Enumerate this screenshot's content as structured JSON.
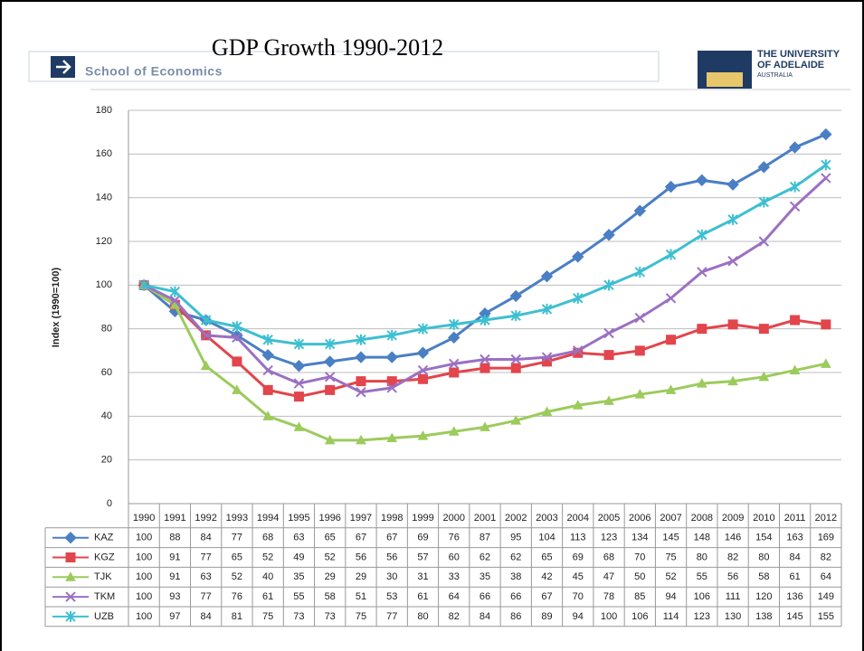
{
  "header": {
    "school": "School of Economics",
    "logo": [
      "THE UNIVERSITY",
      "OF ADELAIDE",
      "AUSTRALIA"
    ]
  },
  "chart_data": {
    "type": "line",
    "title": "GDP Growth 1990-2012",
    "y_label": "Index (1990=100)",
    "categories": [
      "1990",
      "1991",
      "1992",
      "1993",
      "1994",
      "1995",
      "1996",
      "1997",
      "1998",
      "1999",
      "2000",
      "2001",
      "2002",
      "2003",
      "2004",
      "2005",
      "2006",
      "2007",
      "2008",
      "2009",
      "2010",
      "2011",
      "2012"
    ],
    "ylim": [
      0,
      180
    ],
    "yticks": [
      0,
      20,
      40,
      60,
      80,
      100,
      120,
      140,
      160,
      180
    ],
    "grid": true,
    "series": [
      {
        "name": "KAZ",
        "color": "#4a7fc4",
        "marker": "diamond",
        "values": [
          100,
          88,
          84,
          77,
          68,
          63,
          65,
          67,
          67,
          69,
          76,
          87,
          95,
          104,
          113,
          123,
          134,
          145,
          148,
          146,
          154,
          163,
          169
        ]
      },
      {
        "name": "KGZ",
        "color": "#e2454b",
        "marker": "square",
        "values": [
          100,
          91,
          77,
          65,
          52,
          49,
          52,
          56,
          56,
          57,
          60,
          62,
          62,
          65,
          69,
          68,
          70,
          75,
          80,
          82,
          80,
          84,
          82
        ]
      },
      {
        "name": "TJK",
        "color": "#9ccb5c",
        "marker": "triangle",
        "values": [
          100,
          91,
          63,
          52,
          40,
          35,
          29,
          29,
          30,
          31,
          33,
          35,
          38,
          42,
          45,
          47,
          50,
          52,
          55,
          56,
          58,
          61,
          64
        ]
      },
      {
        "name": "TKM",
        "color": "#9b70c2",
        "marker": "x",
        "values": [
          100,
          93,
          77,
          76,
          61,
          55,
          58,
          51,
          53,
          61,
          64,
          66,
          66,
          67,
          70,
          78,
          85,
          94,
          106,
          111,
          120,
          136,
          149
        ]
      },
      {
        "name": "UZB",
        "color": "#3dbfd1",
        "marker": "star",
        "values": [
          100,
          97,
          84,
          81,
          75,
          73,
          73,
          75,
          77,
          80,
          82,
          84,
          86,
          89,
          94,
          100,
          106,
          114,
          123,
          130,
          138,
          145,
          155
        ]
      }
    ]
  }
}
